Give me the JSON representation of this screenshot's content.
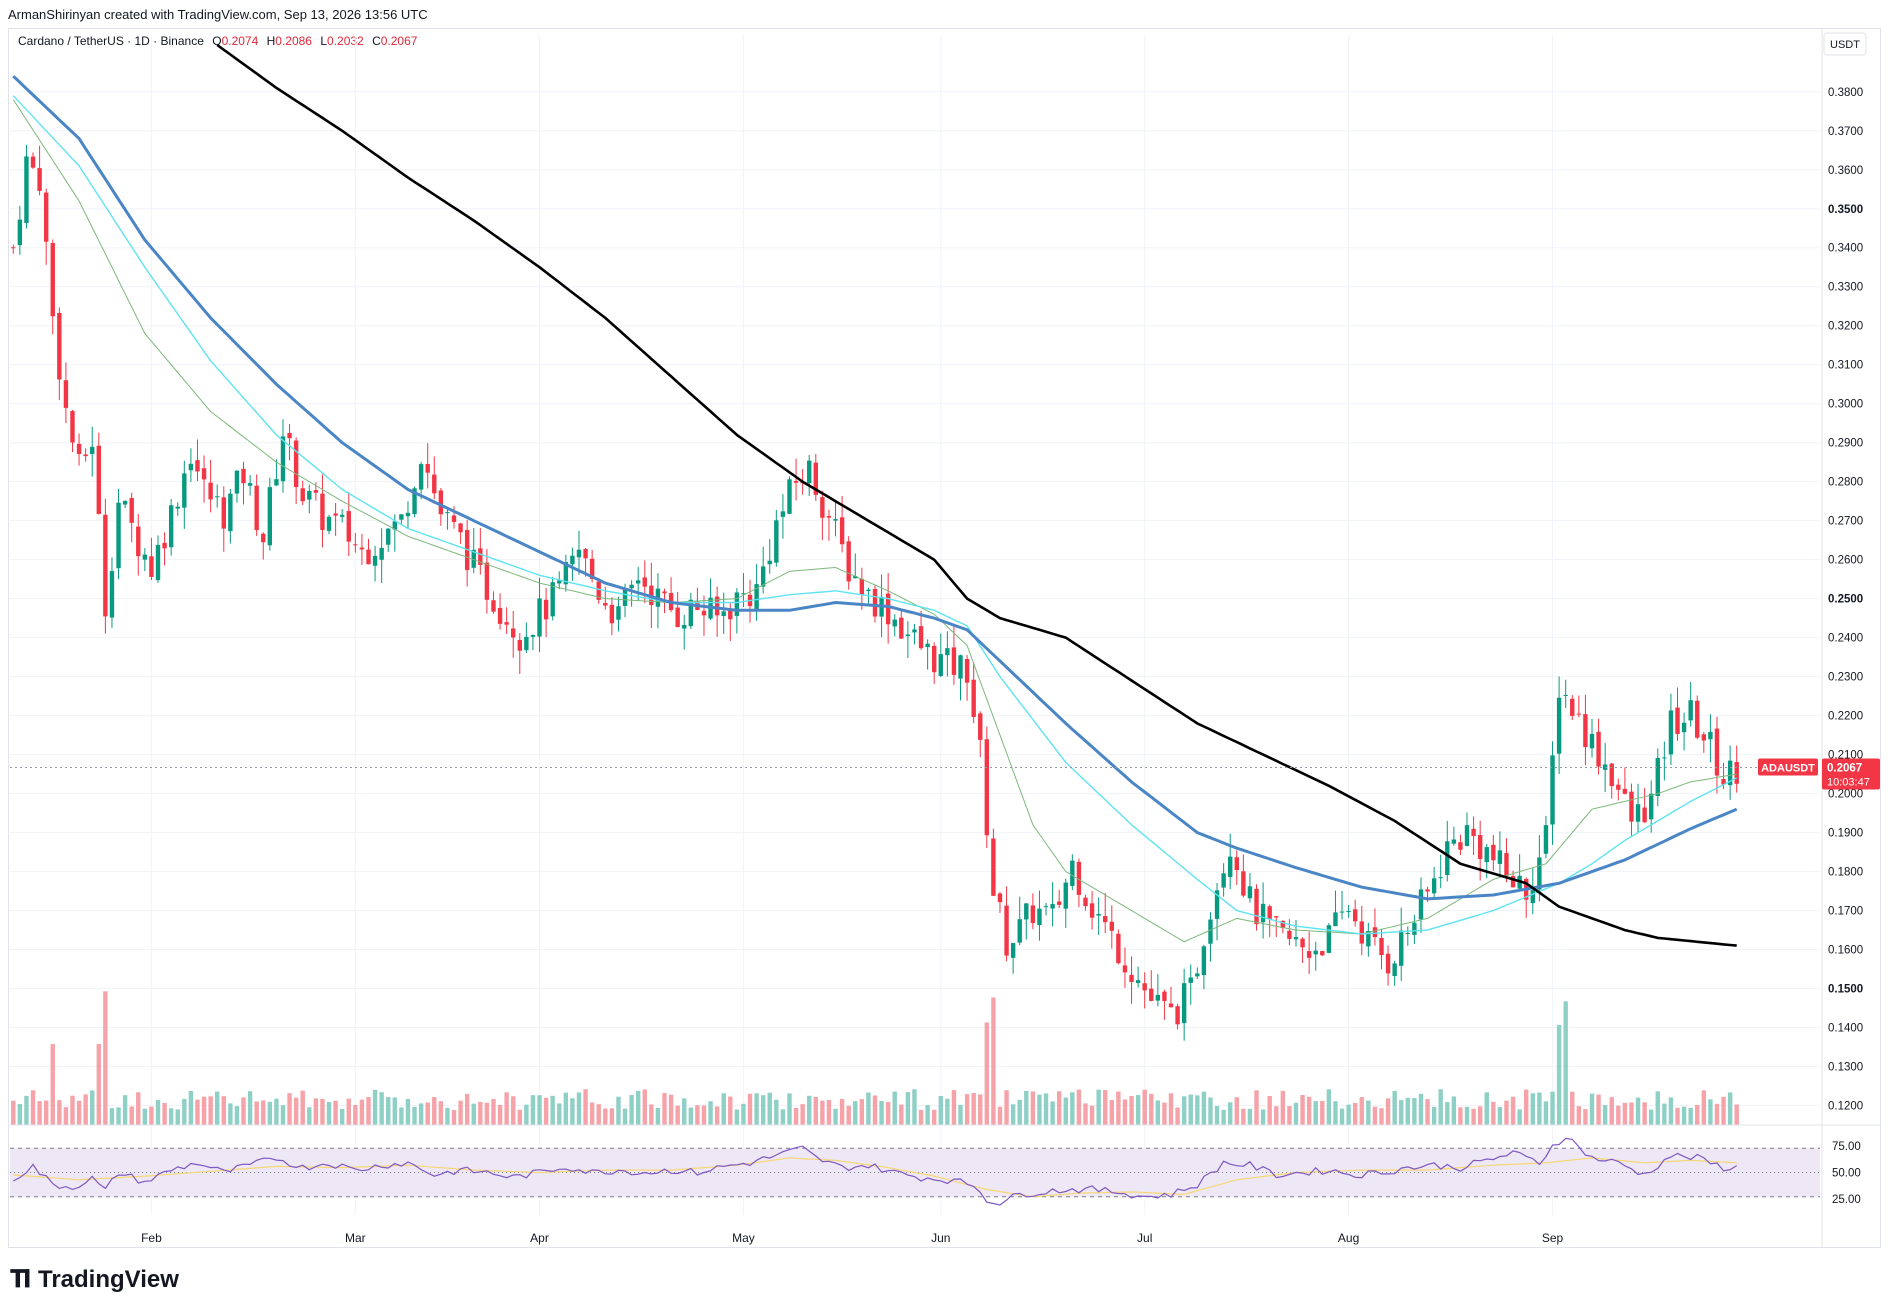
{
  "header": {
    "author": "ArmanShirinyan",
    "created_text": "created with TradingView.com, Sep 13, 2026 13:56 UTC"
  },
  "symbol": {
    "name": "Cardano / TetherUS · 1D · Binance",
    "open_label": "O",
    "open": "0.2074",
    "high_label": "H",
    "high": "0.2086",
    "low_label": "L",
    "low": "0.2032",
    "close_label": "C",
    "close": "0.2067"
  },
  "price_axis": {
    "currency": "USDT",
    "ticks": [
      "0.3800",
      "0.3700",
      "0.3600",
      "0.3500",
      "0.3400",
      "0.3300",
      "0.3200",
      "0.3100",
      "0.3000",
      "0.2900",
      "0.2800",
      "0.2700",
      "0.2600",
      "0.2500",
      "0.2400",
      "0.2300",
      "0.2200",
      "0.2100",
      "0.2000",
      "0.1900",
      "0.1800",
      "0.1700",
      "0.1600",
      "0.1500",
      "0.1400",
      "0.1300",
      "0.1200"
    ]
  },
  "last_price": {
    "ticker": "ADAUSDT",
    "price": "0.2067",
    "countdown": "10:03:47"
  },
  "rsi_axis": {
    "ticks": [
      "75.00",
      "50.00",
      "25.00"
    ]
  },
  "time_axis": {
    "labels": [
      "Feb",
      "Mar",
      "Apr",
      "May",
      "Jun",
      "Jul",
      "Aug",
      "Sep"
    ]
  },
  "branding": {
    "logo_text": "TradingView"
  },
  "colors": {
    "up": "#089981",
    "down": "#f23645",
    "vol_up": "#8fd0c6",
    "vol_down": "#f5a3a9",
    "ema_black": "#000000",
    "ema_blue": "#4a86c5",
    "ema_cyan": "#5ee3f0",
    "ema_green": "#7cb87a",
    "rsi_line": "#7e57c2",
    "rsi_ma": "#f7d774",
    "rsi_band": "#ede7f6"
  },
  "chart_data": {
    "type": "candlestick",
    "title": "Cardano / TetherUS · 1D · Binance",
    "ylabel": "USDT",
    "ylim": [
      0.115,
      0.392
    ],
    "x_range": [
      "Jan 10",
      "Sep 13"
    ],
    "last_close": 0.2067,
    "price_path": [
      [
        0,
        0.34
      ],
      [
        2,
        0.362
      ],
      [
        4,
        0.358
      ],
      [
        6,
        0.322
      ],
      [
        8,
        0.298
      ],
      [
        10,
        0.283
      ],
      [
        12,
        0.291
      ],
      [
        14,
        0.248
      ],
      [
        16,
        0.275
      ],
      [
        18,
        0.268
      ],
      [
        21,
        0.258
      ],
      [
        24,
        0.272
      ],
      [
        27,
        0.288
      ],
      [
        29,
        0.278
      ],
      [
        32,
        0.272
      ],
      [
        35,
        0.282
      ],
      [
        38,
        0.266
      ],
      [
        41,
        0.293
      ],
      [
        44,
        0.277
      ],
      [
        47,
        0.271
      ],
      [
        50,
        0.268
      ],
      [
        53,
        0.262
      ],
      [
        56,
        0.266
      ],
      [
        59,
        0.27
      ],
      [
        62,
        0.288
      ],
      [
        65,
        0.272
      ],
      [
        68,
        0.265
      ],
      [
        71,
        0.255
      ],
      [
        74,
        0.248
      ],
      [
        77,
        0.241
      ],
      [
        80,
        0.246
      ],
      [
        83,
        0.252
      ],
      [
        86,
        0.262
      ],
      [
        89,
        0.252
      ],
      [
        92,
        0.245
      ],
      [
        95,
        0.256
      ],
      [
        98,
        0.25
      ],
      [
        101,
        0.246
      ],
      [
        104,
        0.248
      ],
      [
        107,
        0.245
      ],
      [
        110,
        0.25
      ],
      [
        113,
        0.252
      ],
      [
        116,
        0.269
      ],
      [
        119,
        0.28
      ],
      [
        121,
        0.283
      ],
      [
        124,
        0.271
      ],
      [
        127,
        0.258
      ],
      [
        130,
        0.251
      ],
      [
        133,
        0.247
      ],
      [
        136,
        0.241
      ],
      [
        139,
        0.236
      ],
      [
        142,
        0.233
      ],
      [
        145,
        0.232
      ],
      [
        147,
        0.21
      ],
      [
        149,
        0.175
      ],
      [
        151,
        0.162
      ],
      [
        153,
        0.165
      ],
      [
        155,
        0.17
      ],
      [
        158,
        0.168
      ],
      [
        161,
        0.182
      ],
      [
        164,
        0.171
      ],
      [
        167,
        0.163
      ],
      [
        170,
        0.155
      ],
      [
        173,
        0.147
      ],
      [
        176,
        0.143
      ],
      [
        179,
        0.149
      ],
      [
        182,
        0.172
      ],
      [
        185,
        0.188
      ],
      [
        188,
        0.172
      ],
      [
        191,
        0.165
      ],
      [
        194,
        0.162
      ],
      [
        197,
        0.16
      ],
      [
        200,
        0.163
      ],
      [
        203,
        0.171
      ],
      [
        206,
        0.162
      ],
      [
        209,
        0.157
      ],
      [
        212,
        0.165
      ],
      [
        215,
        0.174
      ],
      [
        218,
        0.186
      ],
      [
        221,
        0.19
      ],
      [
        224,
        0.185
      ],
      [
        227,
        0.179
      ],
      [
        230,
        0.175
      ],
      [
        233,
        0.188
      ],
      [
        235,
        0.228
      ],
      [
        237,
        0.222
      ],
      [
        240,
        0.213
      ],
      [
        243,
        0.205
      ],
      [
        246,
        0.193
      ],
      [
        249,
        0.198
      ],
      [
        252,
        0.218
      ],
      [
        255,
        0.22
      ],
      [
        258,
        0.212
      ],
      [
        260,
        0.204
      ],
      [
        262,
        0.207
      ]
    ],
    "ema_200": [
      [
        31,
        0.392
      ],
      [
        40,
        0.381
      ],
      [
        50,
        0.37
      ],
      [
        60,
        0.358
      ],
      [
        70,
        0.347
      ],
      [
        80,
        0.335
      ],
      [
        90,
        0.322
      ],
      [
        100,
        0.307
      ],
      [
        110,
        0.292
      ],
      [
        120,
        0.28
      ],
      [
        130,
        0.27
      ],
      [
        140,
        0.26
      ],
      [
        145,
        0.25
      ],
      [
        150,
        0.245
      ],
      [
        160,
        0.24
      ],
      [
        170,
        0.229
      ],
      [
        180,
        0.218
      ],
      [
        190,
        0.21
      ],
      [
        200,
        0.202
      ],
      [
        210,
        0.193
      ],
      [
        220,
        0.182
      ],
      [
        230,
        0.177
      ],
      [
        235,
        0.171
      ],
      [
        240,
        0.168
      ],
      [
        245,
        0.165
      ],
      [
        250,
        0.163
      ],
      [
        262,
        0.161
      ]
    ],
    "ema_50": [
      [
        0,
        0.384
      ],
      [
        10,
        0.368
      ],
      [
        20,
        0.342
      ],
      [
        30,
        0.322
      ],
      [
        40,
        0.305
      ],
      [
        50,
        0.29
      ],
      [
        60,
        0.278
      ],
      [
        70,
        0.27
      ],
      [
        80,
        0.262
      ],
      [
        90,
        0.254
      ],
      [
        100,
        0.249
      ],
      [
        110,
        0.247
      ],
      [
        118,
        0.247
      ],
      [
        125,
        0.249
      ],
      [
        133,
        0.248
      ],
      [
        140,
        0.245
      ],
      [
        145,
        0.242
      ],
      [
        150,
        0.234
      ],
      [
        160,
        0.218
      ],
      [
        170,
        0.203
      ],
      [
        180,
        0.19
      ],
      [
        186,
        0.186
      ],
      [
        195,
        0.181
      ],
      [
        205,
        0.176
      ],
      [
        215,
        0.173
      ],
      [
        225,
        0.174
      ],
      [
        235,
        0.177
      ],
      [
        240,
        0.18
      ],
      [
        245,
        0.183
      ],
      [
        250,
        0.187
      ],
      [
        255,
        0.191
      ],
      [
        262,
        0.196
      ]
    ],
    "ema_30": [
      [
        0,
        0.379
      ],
      [
        10,
        0.361
      ],
      [
        20,
        0.335
      ],
      [
        30,
        0.311
      ],
      [
        40,
        0.292
      ],
      [
        50,
        0.278
      ],
      [
        60,
        0.268
      ],
      [
        70,
        0.262
      ],
      [
        80,
        0.256
      ],
      [
        90,
        0.252
      ],
      [
        100,
        0.249
      ],
      [
        110,
        0.249
      ],
      [
        118,
        0.251
      ],
      [
        125,
        0.252
      ],
      [
        133,
        0.25
      ],
      [
        140,
        0.247
      ],
      [
        145,
        0.243
      ],
      [
        150,
        0.23
      ],
      [
        160,
        0.208
      ],
      [
        170,
        0.192
      ],
      [
        180,
        0.178
      ],
      [
        186,
        0.17
      ],
      [
        195,
        0.166
      ],
      [
        205,
        0.164
      ],
      [
        215,
        0.165
      ],
      [
        225,
        0.17
      ],
      [
        235,
        0.177
      ],
      [
        240,
        0.182
      ],
      [
        245,
        0.188
      ],
      [
        250,
        0.193
      ],
      [
        255,
        0.198
      ],
      [
        262,
        0.204
      ]
    ],
    "ema_20": [
      [
        0,
        0.378
      ],
      [
        10,
        0.352
      ],
      [
        20,
        0.318
      ],
      [
        30,
        0.298
      ],
      [
        40,
        0.285
      ],
      [
        50,
        0.275
      ],
      [
        60,
        0.266
      ],
      [
        70,
        0.26
      ],
      [
        80,
        0.254
      ],
      [
        90,
        0.25
      ],
      [
        100,
        0.249
      ],
      [
        110,
        0.25
      ],
      [
        118,
        0.257
      ],
      [
        125,
        0.258
      ],
      [
        133,
        0.252
      ],
      [
        140,
        0.246
      ],
      [
        145,
        0.238
      ],
      [
        150,
        0.215
      ],
      [
        155,
        0.192
      ],
      [
        160,
        0.18
      ],
      [
        170,
        0.17
      ],
      [
        178,
        0.162
      ],
      [
        186,
        0.168
      ],
      [
        195,
        0.165
      ],
      [
        205,
        0.164
      ],
      [
        215,
        0.168
      ],
      [
        225,
        0.178
      ],
      [
        233,
        0.182
      ],
      [
        240,
        0.196
      ],
      [
        245,
        0.198
      ],
      [
        250,
        0.2
      ],
      [
        255,
        0.203
      ],
      [
        262,
        0.205
      ]
    ],
    "rsi_ylim": [
      15,
      85
    ],
    "rsi_path": [
      [
        0,
        45
      ],
      [
        3,
        55
      ],
      [
        6,
        40
      ],
      [
        9,
        38
      ],
      [
        12,
        45
      ],
      [
        14,
        35
      ],
      [
        16,
        50
      ],
      [
        20,
        42
      ],
      [
        24,
        52
      ],
      [
        28,
        58
      ],
      [
        32,
        50
      ],
      [
        36,
        56
      ],
      [
        40,
        62
      ],
      [
        44,
        54
      ],
      [
        48,
        58
      ],
      [
        52,
        52
      ],
      [
        56,
        56
      ],
      [
        60,
        58
      ],
      [
        64,
        48
      ],
      [
        68,
        52
      ],
      [
        72,
        50
      ],
      [
        76,
        46
      ],
      [
        80,
        50
      ],
      [
        84,
        55
      ],
      [
        88,
        50
      ],
      [
        92,
        52
      ],
      [
        96,
        50
      ],
      [
        100,
        52
      ],
      [
        104,
        50
      ],
      [
        108,
        55
      ],
      [
        112,
        58
      ],
      [
        116,
        64
      ],
      [
        120,
        70
      ],
      [
        122,
        62
      ],
      [
        126,
        54
      ],
      [
        130,
        56
      ],
      [
        134,
        50
      ],
      [
        138,
        46
      ],
      [
        142,
        44
      ],
      [
        146,
        40
      ],
      [
        148,
        28
      ],
      [
        150,
        25
      ],
      [
        153,
        32
      ],
      [
        156,
        34
      ],
      [
        160,
        36
      ],
      [
        164,
        36
      ],
      [
        168,
        34
      ],
      [
        172,
        30
      ],
      [
        176,
        32
      ],
      [
        180,
        40
      ],
      [
        184,
        58
      ],
      [
        188,
        56
      ],
      [
        192,
        48
      ],
      [
        196,
        50
      ],
      [
        200,
        52
      ],
      [
        204,
        48
      ],
      [
        208,
        50
      ],
      [
        212,
        54
      ],
      [
        216,
        56
      ],
      [
        220,
        54
      ],
      [
        224,
        60
      ],
      [
        228,
        66
      ],
      [
        232,
        58
      ],
      [
        234,
        72
      ],
      [
        236,
        80
      ],
      [
        240,
        62
      ],
      [
        244,
        58
      ],
      [
        248,
        48
      ],
      [
        252,
        64
      ],
      [
        256,
        62
      ],
      [
        260,
        54
      ],
      [
        262,
        54
      ]
    ],
    "rsi_ma_path": [
      [
        0,
        48
      ],
      [
        10,
        44
      ],
      [
        20,
        47
      ],
      [
        30,
        51
      ],
      [
        40,
        55
      ],
      [
        50,
        54
      ],
      [
        60,
        56
      ],
      [
        70,
        52
      ],
      [
        80,
        50
      ],
      [
        90,
        52
      ],
      [
        100,
        52
      ],
      [
        110,
        56
      ],
      [
        118,
        62
      ],
      [
        125,
        60
      ],
      [
        133,
        54
      ],
      [
        140,
        47
      ],
      [
        148,
        36
      ],
      [
        155,
        30
      ],
      [
        162,
        33
      ],
      [
        170,
        34
      ],
      [
        178,
        32
      ],
      [
        186,
        44
      ],
      [
        195,
        50
      ],
      [
        205,
        52
      ],
      [
        215,
        52
      ],
      [
        225,
        56
      ],
      [
        233,
        58
      ],
      [
        240,
        62
      ],
      [
        248,
        58
      ],
      [
        255,
        60
      ],
      [
        262,
        58
      ]
    ],
    "volume_scale": [
      0,
      1.0
    ]
  }
}
